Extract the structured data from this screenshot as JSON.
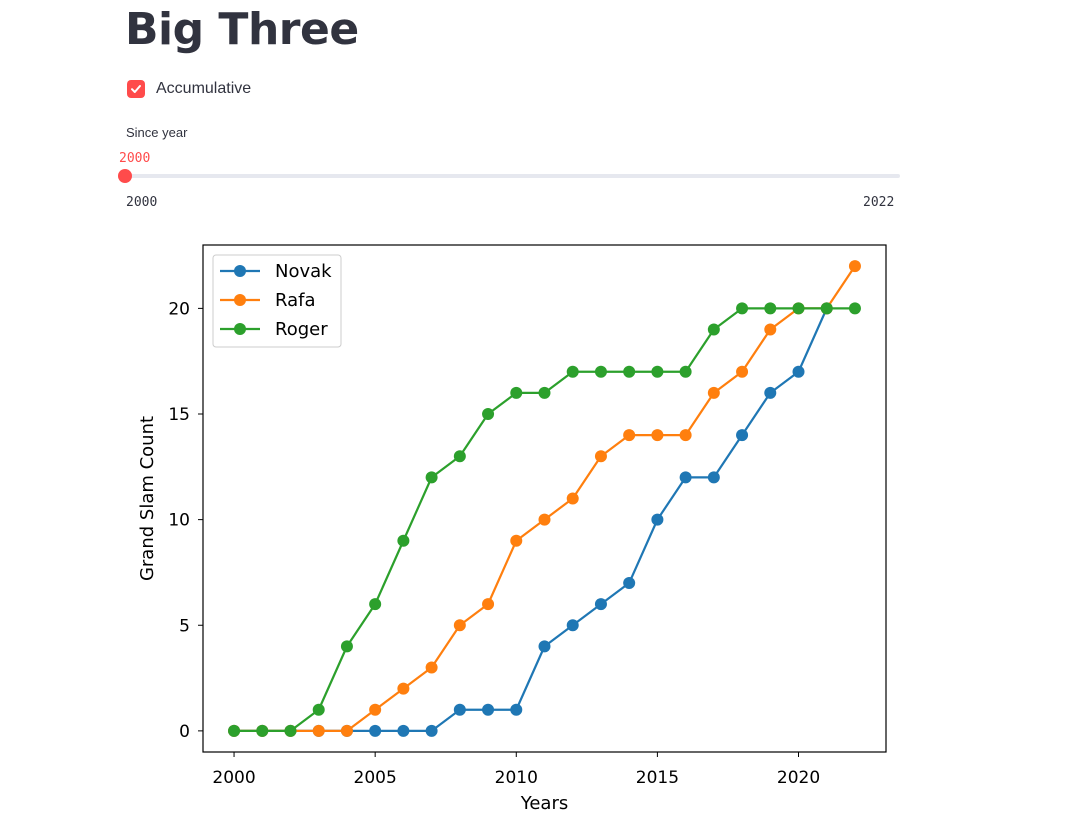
{
  "page": {
    "title": "Big Three"
  },
  "controls": {
    "accumulative_label": "Accumulative",
    "accumulative_checked": true,
    "since_year_label": "Since year",
    "since_year_value": "2000",
    "since_year_min": "2000",
    "since_year_max": "2022",
    "accent_color": "#ff4b4b"
  },
  "chart_data": {
    "type": "line",
    "title": "",
    "xlabel": "Years",
    "ylabel": "Grand Slam Count",
    "x": [
      2000,
      2001,
      2002,
      2003,
      2004,
      2005,
      2006,
      2007,
      2008,
      2009,
      2010,
      2011,
      2012,
      2013,
      2014,
      2015,
      2016,
      2017,
      2018,
      2019,
      2020,
      2021,
      2022
    ],
    "series": [
      {
        "name": "Novak",
        "color": "#1f77b4",
        "values": [
          0,
          0,
          0,
          0,
          0,
          0,
          0,
          0,
          1,
          1,
          1,
          4,
          5,
          6,
          7,
          10,
          12,
          12,
          14,
          16,
          17,
          20,
          null
        ]
      },
      {
        "name": "Rafa",
        "color": "#ff7f0e",
        "values": [
          0,
          0,
          0,
          0,
          0,
          1,
          2,
          3,
          5,
          6,
          9,
          10,
          11,
          13,
          14,
          14,
          14,
          16,
          17,
          19,
          20,
          20,
          22
        ]
      },
      {
        "name": "Roger",
        "color": "#2ca02c",
        "values": [
          0,
          0,
          0,
          1,
          4,
          6,
          9,
          12,
          13,
          15,
          16,
          16,
          17,
          17,
          17,
          17,
          17,
          19,
          20,
          20,
          20,
          20,
          20
        ]
      }
    ],
    "xticks": [
      "2000",
      "2005",
      "2010",
      "2015",
      "2020"
    ],
    "yticks": [
      "0",
      "5",
      "10",
      "15",
      "20"
    ],
    "xlim": [
      1998.9,
      2023.1
    ],
    "ylim": [
      -1.0,
      23.0
    ],
    "legend_position": "upper left",
    "grid": false
  }
}
